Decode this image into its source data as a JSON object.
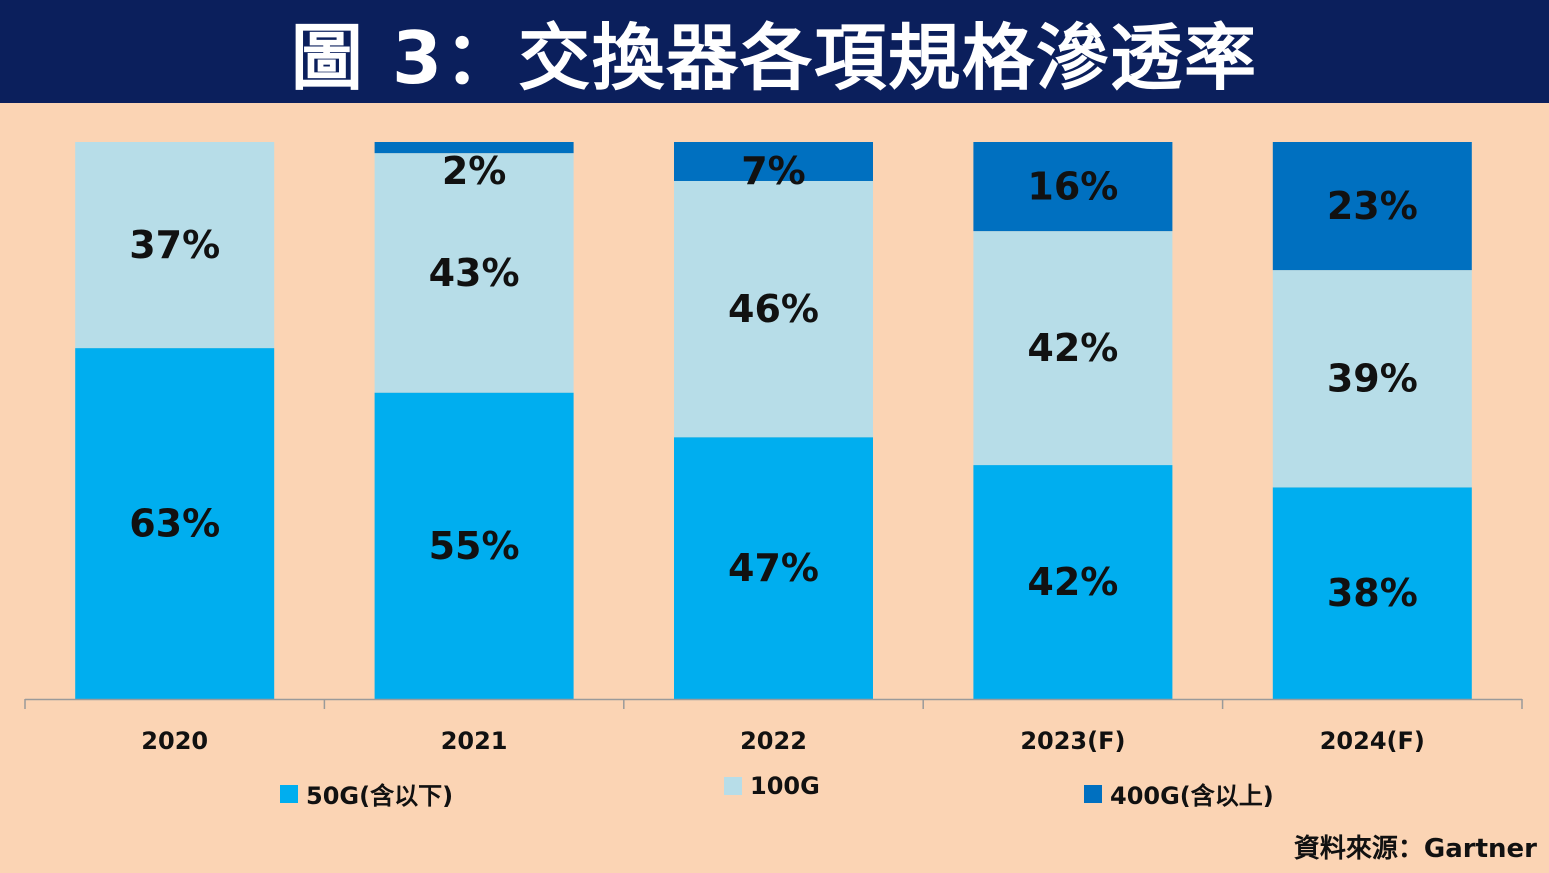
{
  "header": {
    "title": "圖 3：交換器各項規格滲透率"
  },
  "chart_data": {
    "type": "bar",
    "stacked": true,
    "categories": [
      "2020",
      "2021",
      "2022",
      "2023(F)",
      "2024(F)"
    ],
    "series": [
      {
        "name": "50G(含以下)",
        "values": [
          63,
          55,
          47,
          42,
          38
        ],
        "labels": [
          "63%",
          "55%",
          "47%",
          "42%",
          "38%"
        ],
        "color": "#00AEEF"
      },
      {
        "name": "100G",
        "values": [
          37,
          43,
          46,
          42,
          39
        ],
        "labels": [
          "37%",
          "43%",
          "46%",
          "42%",
          "39%"
        ],
        "color": "#B7DDE8"
      },
      {
        "name": "400G(含以上)",
        "values": [
          0,
          2,
          7,
          16,
          23
        ],
        "labels": [
          "",
          "2%",
          "7%",
          "16%",
          "23%"
        ],
        "color": "#0070C0"
      }
    ],
    "ylim": [
      0,
      100
    ],
    "grid": false,
    "legend_position": "bottom"
  },
  "source": "資料來源：Gartner"
}
